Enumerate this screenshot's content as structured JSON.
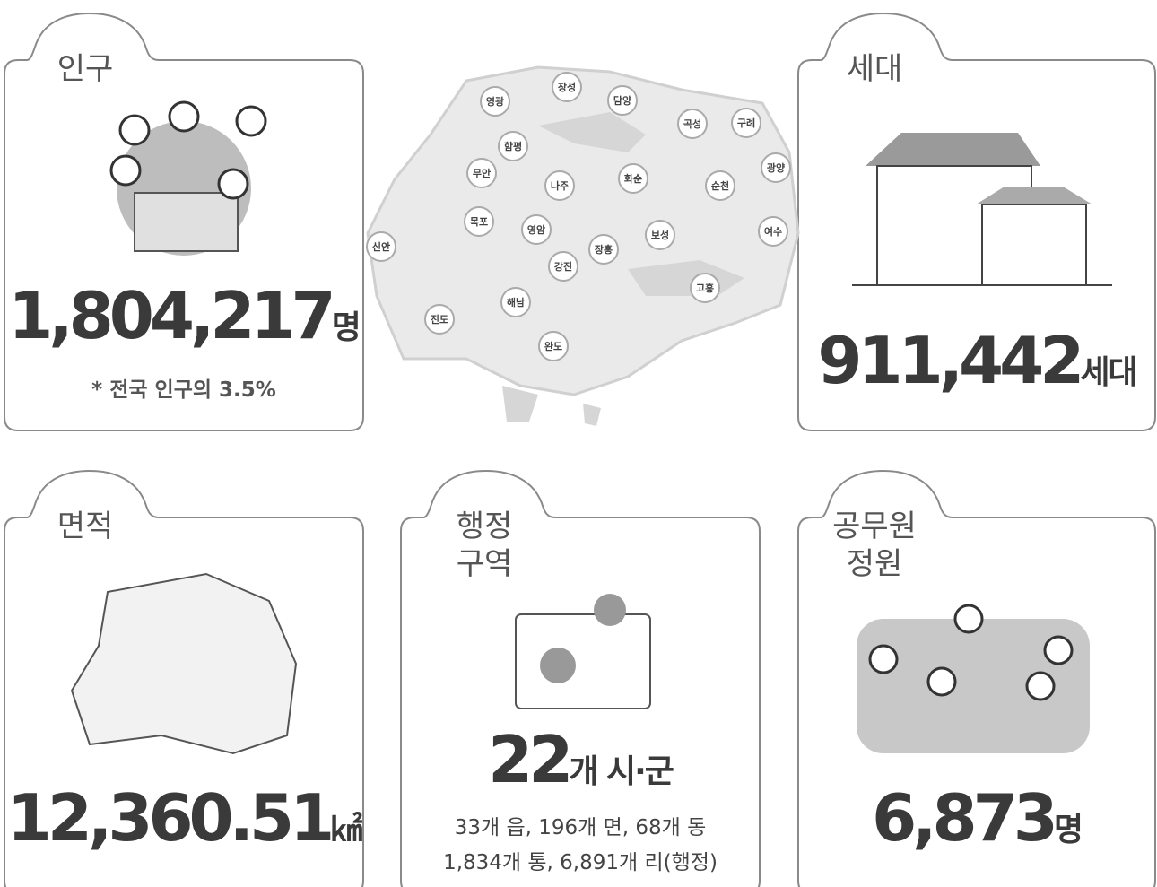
{
  "cards": [
    {
      "title": [
        "인구"
      ],
      "value": "1,804,217",
      "unit": "명",
      "notes": [
        "* 전국 인구의 3.5%"
      ]
    },
    {
      "title": [
        "세대"
      ],
      "value": "911,442",
      "unit": "세대",
      "notes": []
    },
    {
      "title": [
        "면적"
      ],
      "value": "12,360.51",
      "unit": "㎢",
      "notes": []
    },
    {
      "title": [
        "행정",
        "구역"
      ],
      "value": "22",
      "unit": "개 시·군",
      "notes": [
        "33개 읍, 196개 면, 68개 동",
        "1,834개 통, 6,891개 리(행정)"
      ]
    },
    {
      "title": [
        "공무원",
        "정원"
      ],
      "value": "6,873",
      "unit": "명",
      "notes": []
    }
  ],
  "map": {
    "labels": [
      "영광",
      "장성",
      "담양",
      "곡성",
      "구례",
      "함평",
      "광양",
      "무안",
      "나주",
      "화순",
      "순천",
      "목포",
      "영암",
      "보성",
      "여수",
      "신안",
      "장흥",
      "강진",
      "고흥",
      "해남",
      "진도",
      "완도"
    ]
  }
}
